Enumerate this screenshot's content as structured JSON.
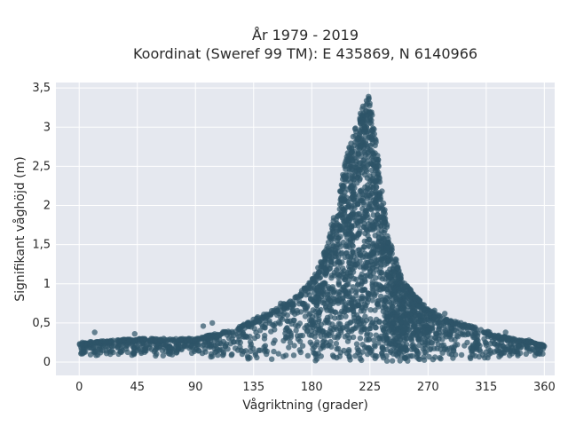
{
  "chart_data": {
    "type": "scatter",
    "title": "År 1979 - 2019",
    "subtitle": "Koordinat (Sweref 99 TM): E 435869, N 6140966",
    "xlabel": "Vågriktning (grader)",
    "ylabel": "Signifikant våghöjd (m)",
    "xlim": [
      -18,
      368
    ],
    "ylim": [
      -0.17,
      3.57
    ],
    "xticks": [
      0,
      45,
      90,
      135,
      180,
      225,
      270,
      315,
      360
    ],
    "xtick_labels": [
      "0",
      "45",
      "90",
      "135",
      "180",
      "225",
      "270",
      "315",
      "360"
    ],
    "yticks": [
      0,
      0.5,
      1,
      1.5,
      2,
      2.5,
      3,
      3.5
    ],
    "ytick_labels": [
      "0",
      "0,5",
      "1",
      "1,5",
      "2",
      "2,5",
      "3",
      "3,5"
    ],
    "grid": true,
    "marker_color": "#2e5468",
    "background_color": "#e5e8ef",
    "envelope": {
      "x": [
        0,
        45,
        90,
        120,
        135,
        150,
        165,
        180,
        190,
        200,
        205,
        210,
        215,
        220,
        225,
        230,
        235,
        240,
        250,
        260,
        270,
        285,
        300,
        315,
        330,
        345,
        360
      ],
      "y_max": [
        0.25,
        0.3,
        0.3,
        0.42,
        0.55,
        0.68,
        0.8,
        1.05,
        1.45,
        2.05,
        2.55,
        2.8,
        3.05,
        3.3,
        3.42,
        2.8,
        2.1,
        1.6,
        1.05,
        0.85,
        0.68,
        0.55,
        0.48,
        0.4,
        0.32,
        0.28,
        0.22
      ],
      "y_min": [
        0.08,
        0.08,
        0.07,
        0.05,
        0.03,
        0.02,
        0.01,
        0.01,
        0.01,
        0.01,
        0.01,
        0.01,
        0.01,
        0.01,
        0.01,
        0.01,
        0.01,
        0.01,
        0.01,
        0.02,
        0.02,
        0.03,
        0.04,
        0.05,
        0.06,
        0.07,
        0.08
      ]
    },
    "outliers": [
      {
        "x": 12,
        "y": 0.38
      },
      {
        "x": 38,
        "y": 0.25
      },
      {
        "x": 43,
        "y": 0.36
      },
      {
        "x": 96,
        "y": 0.46
      },
      {
        "x": 103,
        "y": 0.5
      },
      {
        "x": 156,
        "y": 0.75
      },
      {
        "x": 275,
        "y": 0.66
      },
      {
        "x": 283,
        "y": 0.62
      },
      {
        "x": 330,
        "y": 0.38
      },
      {
        "x": 348,
        "y": 0.28
      }
    ]
  }
}
